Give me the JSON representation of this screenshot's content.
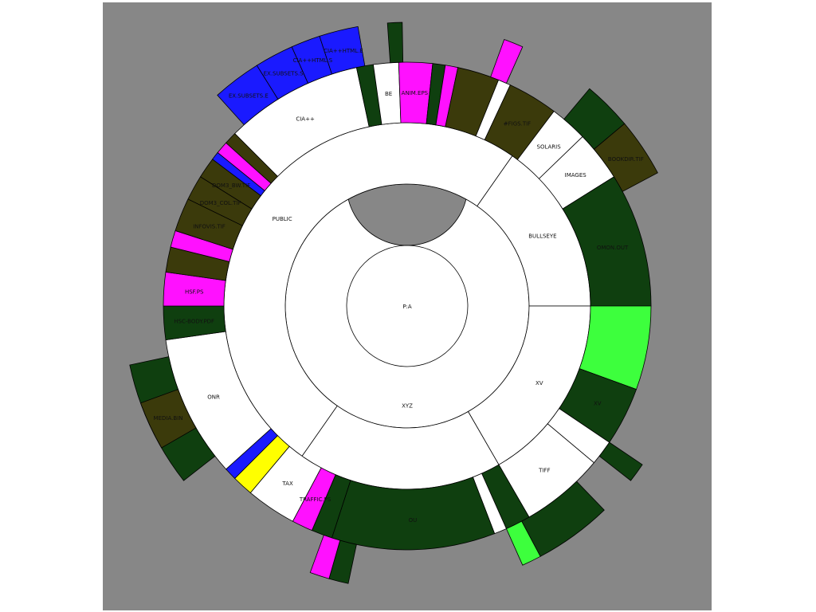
{
  "colors": {
    "background": "#878787",
    "directory": "#ffffff",
    "dark_green": "#0f3f0f",
    "olive": "#3b3a0b",
    "blue": "#1a1aff",
    "magenta": "#ff11ff",
    "bright_green": "#3dff3d",
    "yellow": "#ffff00"
  },
  "rings": [
    {
      "level": 0,
      "items": [
        {
          "id": "P",
          "label": "P:A",
          "start": 0,
          "end": 360,
          "color": "directory"
        }
      ]
    },
    {
      "level": 1,
      "items": [
        {
          "id": "XYZ",
          "label": "XYZ",
          "start": 0,
          "end": 360,
          "color": "directory"
        }
      ]
    },
    {
      "level": 2,
      "items": [
        {
          "id": "PUBLIC",
          "label": "PUBLIC",
          "start": 215,
          "end": 395,
          "color": "directory"
        },
        {
          "id": "BULLSEYE",
          "label": "BULLSEYE",
          "start": 35,
          "end": 90,
          "color": "directory"
        },
        {
          "id": "XV",
          "label": "XV",
          "start": 90,
          "end": 150,
          "color": "directory"
        },
        {
          "id": "PUB2",
          "label": "",
          "start": 150,
          "end": 215,
          "color": "directory"
        }
      ]
    },
    {
      "level": 3,
      "items": [
        {
          "id": "CIA",
          "label": "CIA++",
          "start": 315,
          "end": 348,
          "color": "directory"
        },
        {
          "id": "CIA-d1",
          "label": "",
          "start": 348,
          "end": 352,
          "color": "dark_green"
        },
        {
          "id": "BE",
          "label": "BE",
          "start": 352,
          "end": 358,
          "color": "directory"
        },
        {
          "id": "ANIM",
          "label": "ANIM.EPS",
          "start": 358,
          "end": 6,
          "color": "magenta"
        },
        {
          "id": "r3a",
          "label": "",
          "start": 6,
          "end": 9,
          "color": "dark_green"
        },
        {
          "id": "r3b",
          "label": "",
          "start": 9,
          "end": 12,
          "color": "magenta"
        },
        {
          "id": "r3c",
          "label": "",
          "start": 12,
          "end": 22,
          "color": "olive"
        },
        {
          "id": "r3d",
          "label": "",
          "start": 22,
          "end": 25,
          "color": "directory"
        },
        {
          "id": "FIGS",
          "label": "#FIGS.TIF",
          "start": 25,
          "end": 37,
          "color": "olive"
        },
        {
          "id": "SOLARIS",
          "label": "SOLARIS",
          "start": 37,
          "end": 46,
          "color": "directory"
        },
        {
          "id": "IMAGES",
          "label": "IMAGES",
          "start": 46,
          "end": 58,
          "color": "directory"
        },
        {
          "id": "OMON",
          "label": "OMON.OUT",
          "start": 58,
          "end": 90,
          "color": "dark_green"
        },
        {
          "id": "XVBAND",
          "label": "",
          "start": 90,
          "end": 110,
          "color": "bright_green"
        },
        {
          "id": "XVOUT",
          "label": "XV",
          "start": 110,
          "end": 124,
          "color": "dark_green"
        },
        {
          "id": "r3e",
          "label": "",
          "start": 124,
          "end": 130,
          "color": "directory"
        },
        {
          "id": "TIFF",
          "label": "TIFF",
          "start": 130,
          "end": 150,
          "color": "directory"
        },
        {
          "id": "r3f",
          "label": "",
          "start": 150,
          "end": 156,
          "color": "dark_green"
        },
        {
          "id": "r3g",
          "label": "",
          "start": 156,
          "end": 159,
          "color": "directory"
        },
        {
          "id": "OU",
          "label": "OU",
          "start": 159,
          "end": 198,
          "color": "dark_green"
        },
        {
          "id": "r3h",
          "label": "",
          "start": 198,
          "end": 203,
          "color": "dark_green"
        },
        {
          "id": "TRAFFIC",
          "label": "TRAFFIC.PS",
          "start": 203,
          "end": 208,
          "color": "magenta"
        },
        {
          "id": "TAX",
          "label": "TAX",
          "start": 208,
          "end": 220,
          "color": "directory"
        },
        {
          "id": "r3i",
          "label": "",
          "start": 220,
          "end": 225,
          "color": "yellow"
        },
        {
          "id": "r3j",
          "label": "",
          "start": 225,
          "end": 228,
          "color": "blue"
        },
        {
          "id": "ONR",
          "label": "ONR",
          "start": 228,
          "end": 262,
          "color": "directory"
        },
        {
          "id": "HSCBODY",
          "label": "HSC-BODY.PDF",
          "start": 262,
          "end": 270,
          "color": "dark_green"
        },
        {
          "id": "HSF",
          "label": "HSF.PS",
          "start": 270,
          "end": 278,
          "color": "magenta"
        },
        {
          "id": "r3k",
          "label": "",
          "start": 278,
          "end": 284,
          "color": "olive"
        },
        {
          "id": "r3l",
          "label": "",
          "start": 284,
          "end": 288,
          "color": "magenta"
        },
        {
          "id": "INFOVIS",
          "label": "INFOVIS.TIF",
          "start": 288,
          "end": 296,
          "color": "olive"
        },
        {
          "id": "DOM3COL",
          "label": "DOM3_COL.TIF",
          "start": 296,
          "end": 302,
          "color": "olive"
        },
        {
          "id": "DOM3BW",
          "label": "DOM3_BW.TIF",
          "start": 302,
          "end": 307,
          "color": "olive"
        },
        {
          "id": "r3m",
          "label": "",
          "start": 307,
          "end": 309,
          "color": "blue"
        },
        {
          "id": "r3n",
          "label": "",
          "start": 309,
          "end": 312,
          "color": "magenta"
        },
        {
          "id": "r3o",
          "label": "",
          "start": 312,
          "end": 315,
          "color": "olive"
        }
      ]
    },
    {
      "level": 4,
      "items": [
        {
          "id": "EXSUB1",
          "label": "EX.SUBSETS.E",
          "start": 318,
          "end": 328,
          "color": "blue"
        },
        {
          "id": "EXSUB2",
          "label": "EX.SUBSETS.S",
          "start": 328,
          "end": 336,
          "color": "blue"
        },
        {
          "id": "CIAHTML1",
          "label": "CIA++HTML.S",
          "start": 336,
          "end": 342,
          "color": "blue"
        },
        {
          "id": "CIAHTML2",
          "label": "CIA++HTML.E",
          "start": 342,
          "end": 350,
          "color": "blue"
        },
        {
          "id": "r4a",
          "label": "",
          "start": 356,
          "end": 359,
          "color": "dark_green"
        },
        {
          "id": "r4b",
          "label": "",
          "start": 20,
          "end": 24,
          "color": "magenta"
        },
        {
          "id": "r4c",
          "label": "",
          "start": 40,
          "end": 50,
          "color": "dark_green"
        },
        {
          "id": "BOOKDIR",
          "label": "BOOKDIR.TIF",
          "start": 50,
          "end": 62,
          "color": "olive"
        },
        {
          "id": "r4d",
          "label": "",
          "start": 124,
          "end": 128,
          "color": "dark_green"
        },
        {
          "id": "r4e",
          "label": "",
          "start": 136,
          "end": 152,
          "color": "dark_green"
        },
        {
          "id": "r4f",
          "label": "",
          "start": 152,
          "end": 156,
          "color": "bright_green"
        },
        {
          "id": "r4g",
          "label": "",
          "start": 192,
          "end": 196,
          "color": "dark_green"
        },
        {
          "id": "r4h",
          "label": "",
          "start": 196,
          "end": 200,
          "color": "magenta"
        },
        {
          "id": "MEDIA",
          "label": "MEDIA.BIN",
          "start": 232,
          "end": 258,
          "color": "dark_green"
        },
        {
          "id": "r4i",
          "label": "",
          "start": 240,
          "end": 250,
          "color": "olive"
        }
      ]
    }
  ],
  "labels": [
    {
      "text": "P:A",
      "at": "center"
    },
    {
      "text": "XYZ"
    },
    {
      "text": "PUBLIC"
    },
    {
      "text": "BULLSEYE"
    },
    {
      "text": "XV"
    },
    {
      "text": "CIA++"
    },
    {
      "text": "BE"
    },
    {
      "text": "ANIM.EPS"
    },
    {
      "text": "#FIGS.TIF"
    },
    {
      "text": "SOLARIS"
    },
    {
      "text": "IMAGES"
    },
    {
      "text": "OMON.OUT"
    },
    {
      "text": "TIFF"
    },
    {
      "text": "OU"
    },
    {
      "text": "TRAFFIC.PS"
    },
    {
      "text": "TAX"
    },
    {
      "text": "ONR"
    },
    {
      "text": "HSC-BODY.PDF"
    },
    {
      "text": "HSF.PS"
    },
    {
      "text": "INFOVIS.TIF"
    },
    {
      "text": "DOM3_COL.TIF"
    },
    {
      "text": "DOM3_BW.TIF"
    },
    {
      "text": "EX.SUBSETS.E"
    },
    {
      "text": "EX.SUBSETS.S"
    },
    {
      "text": "CIA++HTML.S"
    },
    {
      "text": "CIA++HTML.E"
    },
    {
      "text": "BOOKDIR.TIF"
    },
    {
      "text": "MEDIA.BIN"
    }
  ]
}
